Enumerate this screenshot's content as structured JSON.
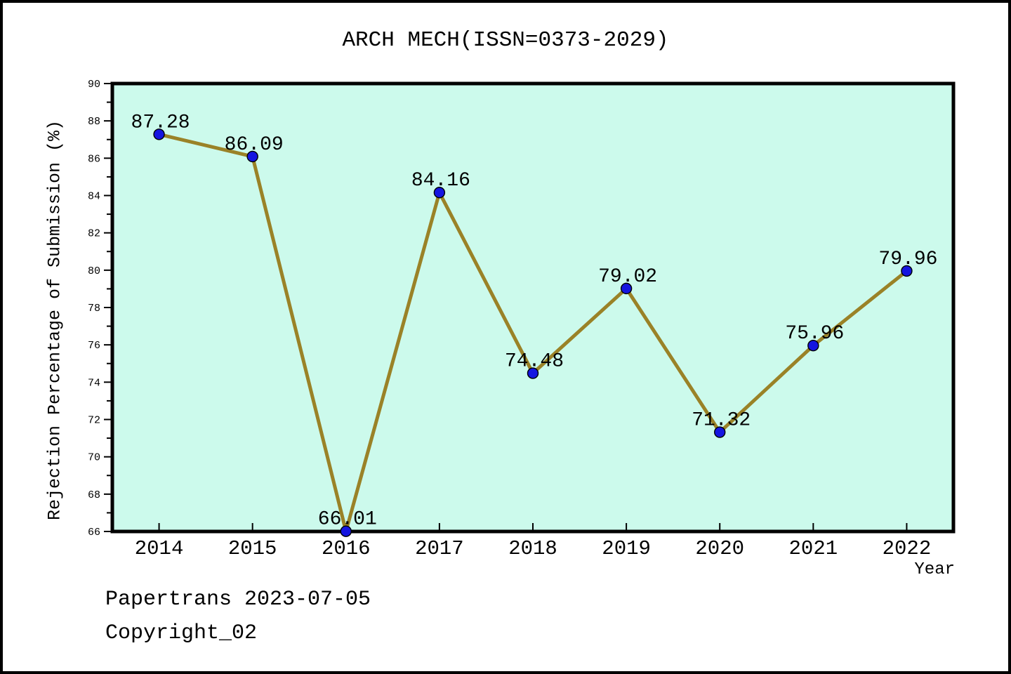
{
  "footer": {
    "line1": "Papertrans 2023-07-05",
    "line2": "Copyright_02"
  },
  "chart_data": {
    "type": "line",
    "title": "ARCH MECH(ISSN=0373-2029)",
    "xlabel": "Year",
    "ylabel": "Rejection Percentage of Submission (%)",
    "x": [
      2014,
      2015,
      2016,
      2017,
      2018,
      2019,
      2020,
      2021,
      2022
    ],
    "x_tick_labels": [
      "2014",
      "2015",
      "2016",
      "2017",
      "2018",
      "2019",
      "2020",
      "2021",
      "2022"
    ],
    "series": [
      {
        "name": "rejection-percentage-of-submission",
        "values": [
          87.28,
          86.09,
          66.01,
          84.16,
          74.48,
          79.02,
          71.32,
          75.96,
          79.96
        ]
      }
    ],
    "point_labels": [
      "87.28",
      "86.09",
      "66.01",
      "84.16",
      "74.48",
      "79.02",
      "71.32",
      "75.96",
      "79.96"
    ],
    "xlim": [
      2013.5,
      2022.5
    ],
    "ylim": [
      66,
      90
    ],
    "y_major_step": 2,
    "y_minor_step": 1,
    "grid": false,
    "legend": "none",
    "marker": "circle",
    "colors": {
      "line": "#9a8227",
      "marker_fill": "#1515e0",
      "marker_edge": "#000000",
      "plot_background": "#ccfaec",
      "frame": "#000000",
      "text": "#000000",
      "page_background": "#ffffff",
      "page_border": "#000000"
    }
  }
}
